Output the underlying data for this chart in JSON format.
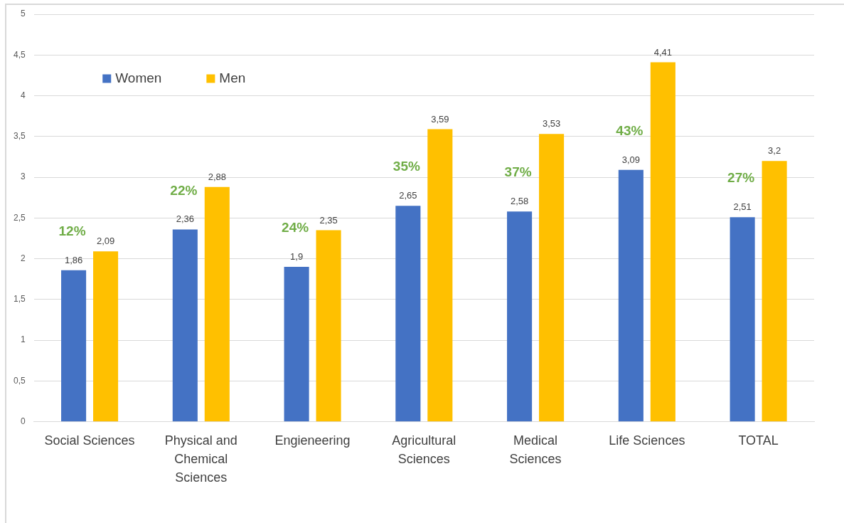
{
  "chart_data": {
    "type": "bar",
    "categories": [
      "Social Sciences",
      "Physical and Chemical Sciences",
      "Engieneering",
      "Agricultural Sciences",
      "Medical Sciences",
      "Life Sciences",
      "TOTAL"
    ],
    "series": [
      {
        "name": "Women",
        "color": "#4472c4",
        "values": [
          1.86,
          2.36,
          1.9,
          2.65,
          2.58,
          3.09,
          2.51
        ],
        "value_labels": [
          "1,86",
          "2,36",
          "1,9",
          "2,65",
          "2,58",
          "3,09",
          "2,51"
        ]
      },
      {
        "name": "Men",
        "color": "#ffc000",
        "values": [
          2.09,
          2.88,
          2.35,
          3.59,
          3.53,
          4.41,
          3.2
        ],
        "value_labels": [
          "2,09",
          "2,88",
          "2,35",
          "3,59",
          "3,53",
          "4,41",
          "3,2"
        ]
      }
    ],
    "ylim": [
      0,
      5
    ],
    "yticks": [
      0,
      {
        "value": 0.5,
        "label": "0,5"
      },
      1,
      {
        "value": 1.5,
        "label": "1,5"
      },
      2,
      {
        "value": 2.5,
        "label": "2,5"
      },
      3,
      {
        "value": 3.5,
        "label": "3,5"
      },
      4,
      {
        "value": 4.5,
        "label": "4,5"
      },
      5
    ],
    "grid": "y",
    "legend": "top left",
    "annotations": [
      "12%",
      "22%",
      "24%",
      "35%",
      "37%",
      "43%",
      "27%"
    ]
  }
}
